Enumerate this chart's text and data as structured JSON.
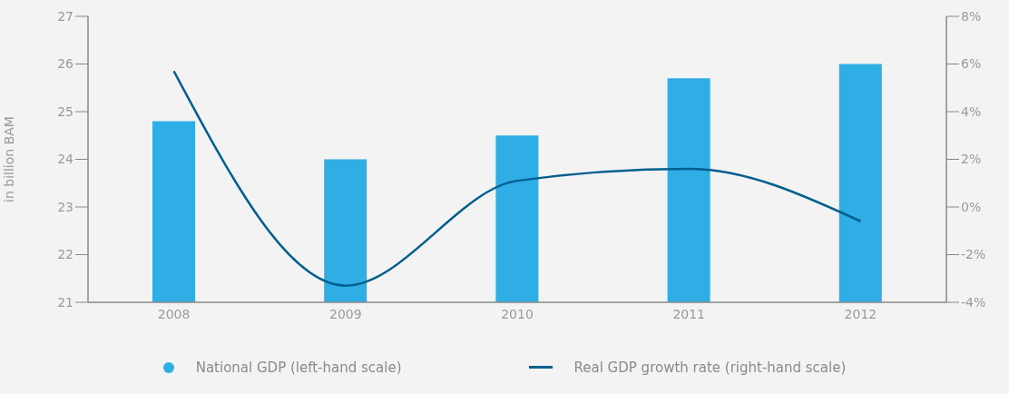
{
  "chart_data": {
    "type": "bar",
    "categories": [
      "2008",
      "2009",
      "2010",
      "2011",
      "2012"
    ],
    "ylabel": "in billion BAM",
    "ylim": [
      21,
      27
    ],
    "yticks": [
      21,
      22,
      23,
      24,
      25,
      26,
      27
    ],
    "y2lim": [
      -4,
      8
    ],
    "y2ticks": [
      {
        "value": -4,
        "label": "-4%"
      },
      {
        "value": -2,
        "label": "-2%"
      },
      {
        "value": 0,
        "label": "0%"
      },
      {
        "value": 2,
        "label": "2%"
      },
      {
        "value": 4,
        "label": "4%"
      },
      {
        "value": 6,
        "label": "6%"
      },
      {
        "value": 8,
        "label": "8%"
      }
    ],
    "series": [
      {
        "name": "National GDP (left-hand scale)",
        "color": "#2eaee4",
        "values": [
          24.8,
          24.0,
          24.5,
          25.7,
          26.0
        ]
      },
      {
        "name": "Real GDP growth rate (right-hand scale)",
        "type": "line",
        "axis": "y2",
        "color": "#005f8f",
        "values": [
          5.7,
          -3.3,
          1.1,
          1.6,
          -0.6
        ]
      }
    ],
    "grid": false,
    "legend": "bottom"
  }
}
